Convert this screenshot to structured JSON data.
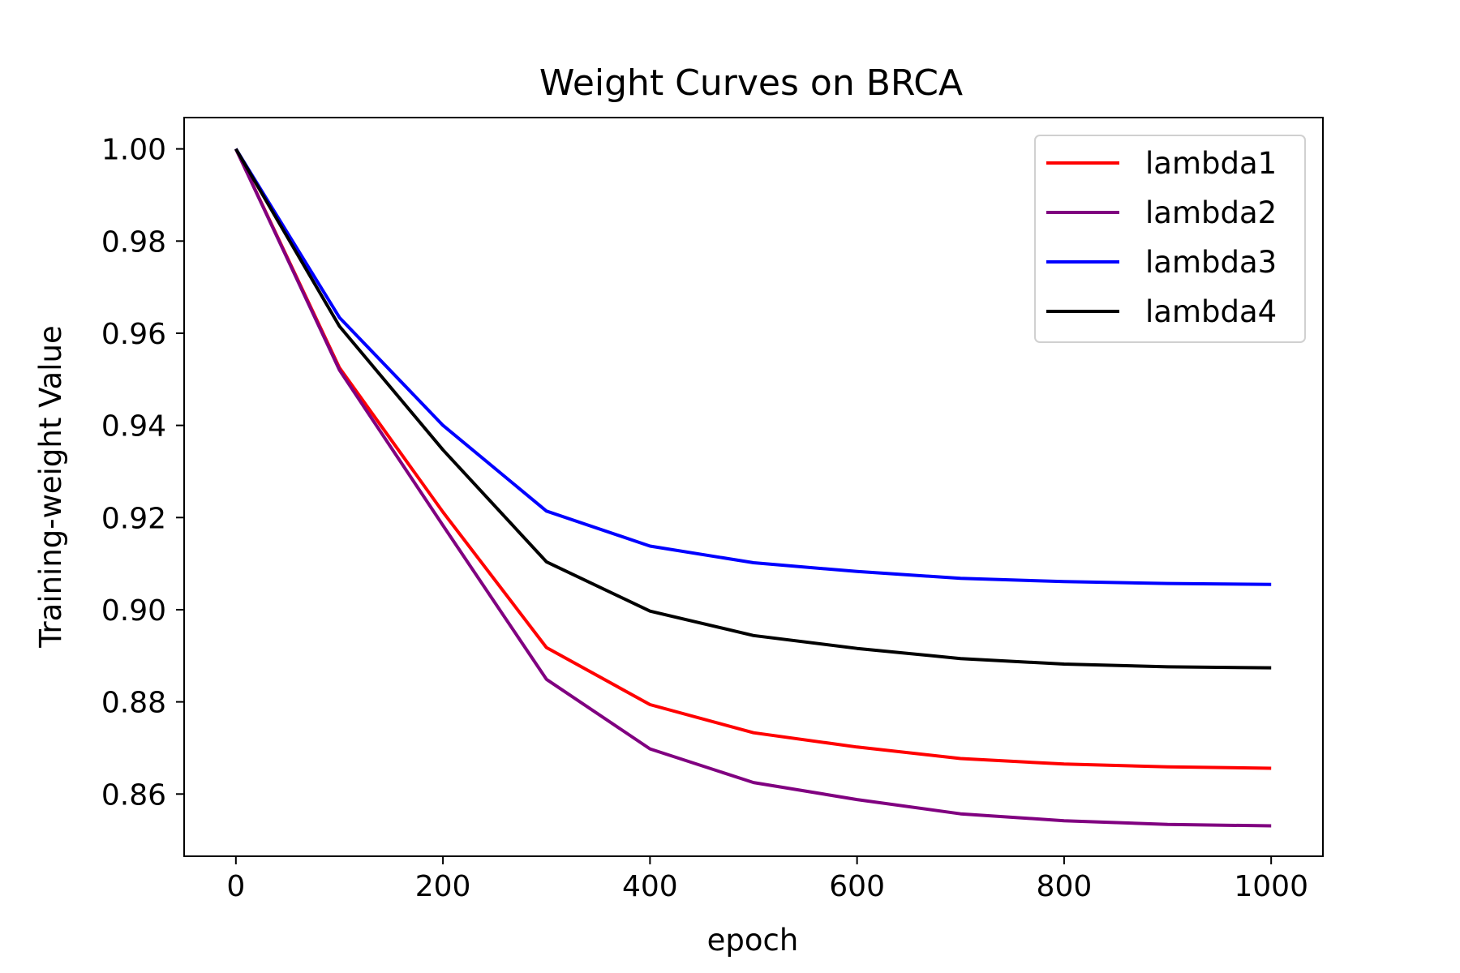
{
  "chart_data": {
    "type": "line",
    "title": "Weight Curves on BRCA",
    "xlabel": "epoch",
    "ylabel": "Training-weight Value",
    "xlim": [
      -50,
      1050
    ],
    "ylim": [
      0.8465,
      1.0068
    ],
    "xticks": [
      0,
      200,
      400,
      600,
      800,
      1000
    ],
    "xtick_labels": [
      "0",
      "200",
      "400",
      "600",
      "800",
      "1000"
    ],
    "yticks": [
      0.86,
      0.88,
      0.9,
      0.92,
      0.94,
      0.96,
      0.98,
      1.0
    ],
    "ytick_labels": [
      "0.86",
      "0.88",
      "0.90",
      "0.92",
      "0.94",
      "0.96",
      "0.98",
      "1.00"
    ],
    "grid": false,
    "legend_position": "top-right",
    "x": [
      0,
      100,
      200,
      300,
      400,
      500,
      600,
      700,
      800,
      900,
      1000
    ],
    "series": [
      {
        "name": "lambda1",
        "color": "#ff0000",
        "values": [
          1.0,
          0.9525,
          0.9212,
          0.8918,
          0.8794,
          0.8733,
          0.8702,
          0.8677,
          0.8665,
          0.8659,
          0.8656
        ]
      },
      {
        "name": "lambda2",
        "color": "#800080",
        "values": [
          1.0,
          0.952,
          0.9183,
          0.8849,
          0.8698,
          0.8625,
          0.8588,
          0.8557,
          0.8542,
          0.8534,
          0.8531
        ]
      },
      {
        "name": "lambda3",
        "color": "#0000ff",
        "values": [
          1.0,
          0.9634,
          0.94,
          0.9214,
          0.9138,
          0.9102,
          0.9083,
          0.9068,
          0.9061,
          0.9057,
          0.9055
        ]
      },
      {
        "name": "lambda4",
        "color": "#000000",
        "values": [
          1.0,
          0.9615,
          0.9347,
          0.9104,
          0.8997,
          0.8944,
          0.8916,
          0.8894,
          0.8882,
          0.8876,
          0.8874
        ]
      }
    ]
  }
}
